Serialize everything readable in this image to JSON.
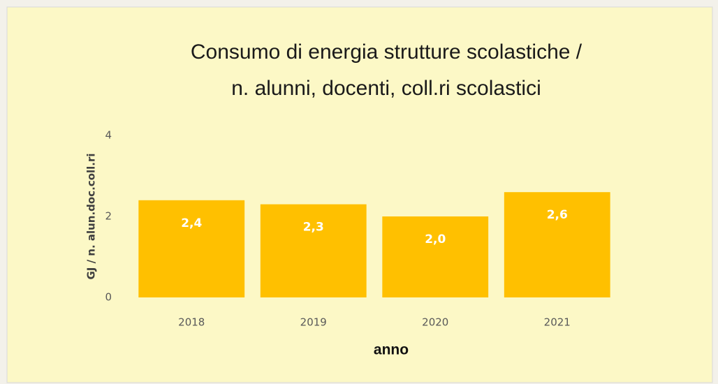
{
  "chart_data": {
    "type": "bar",
    "title": [
      "Consumo di energia strutture scolastiche /",
      "n. alunni, docenti, coll.ri scolastici"
    ],
    "y_label": "GJ / n. alun.doc.coll.ri",
    "x_label": "anno",
    "categories": [
      "2018",
      "2019",
      "2020",
      "2021"
    ],
    "values": [
      2.4,
      2.3,
      2.0,
      2.6
    ],
    "value_labels": [
      "2,4",
      "2,3",
      "2,0",
      "2,6"
    ],
    "color": "#ffc000",
    "ylim": [
      0,
      4
    ],
    "yticks": [
      0,
      2,
      4
    ],
    "grid": false
  }
}
